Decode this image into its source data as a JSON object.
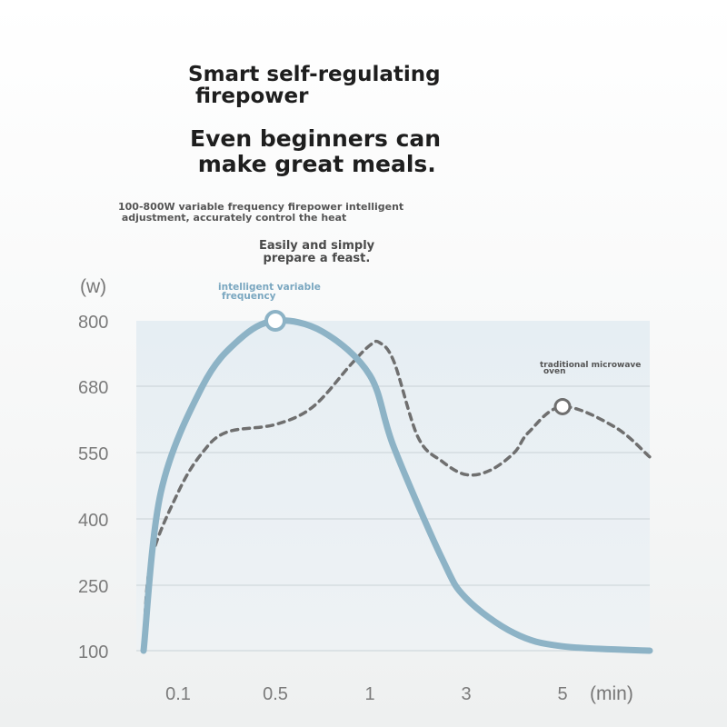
{
  "headline_1": "Smart self-regulating\n firepower",
  "headline_2": "Even beginners can\n make great meals.",
  "subtitle_1": "100-800W variable frequency firepower intelligent\n adjustment, accurately control the heat",
  "subtitle_2": "Easily and simply\n prepare a feast.",
  "chart_data": {
    "type": "line",
    "ylabel": "(w)",
    "xunit": "(min)",
    "categories": [
      "0.1",
      "0.5",
      "1",
      "3",
      "5"
    ],
    "yticks": [
      800,
      680,
      550,
      400,
      250,
      100
    ],
    "ylim": [
      100,
      800
    ],
    "grid": true,
    "series": [
      {
        "name": "intelligent variable frequency",
        "style": "solid",
        "color": "#8db3c6",
        "x": [
          0,
          0.05,
          0.2,
          0.35,
          0.5,
          0.75,
          1,
          1.5,
          2.5,
          3,
          4,
          5,
          5.5
        ],
        "values": [
          100,
          460,
          680,
          765,
          800,
          780,
          700,
          560,
          310,
          220,
          140,
          110,
          100
        ],
        "marker": {
          "x": 0.5,
          "y": 800
        }
      },
      {
        "name": "traditional microwave oven",
        "style": "dashed",
        "color": "#6f6f6f",
        "x": [
          0,
          0.02,
          0.1,
          0.2,
          0.3,
          0.5,
          0.7,
          0.9,
          1,
          1.2,
          1.5,
          2,
          2.5,
          3,
          3.5,
          4,
          4.3,
          5,
          5.3,
          5.5
        ],
        "values": [
          100,
          300,
          460,
          550,
          590,
          605,
          640,
          720,
          755,
          760,
          725,
          580,
          530,
          500,
          510,
          550,
          590,
          640,
          600,
          540
        ],
        "marker": {
          "x": 5,
          "y": 640
        }
      }
    ]
  }
}
